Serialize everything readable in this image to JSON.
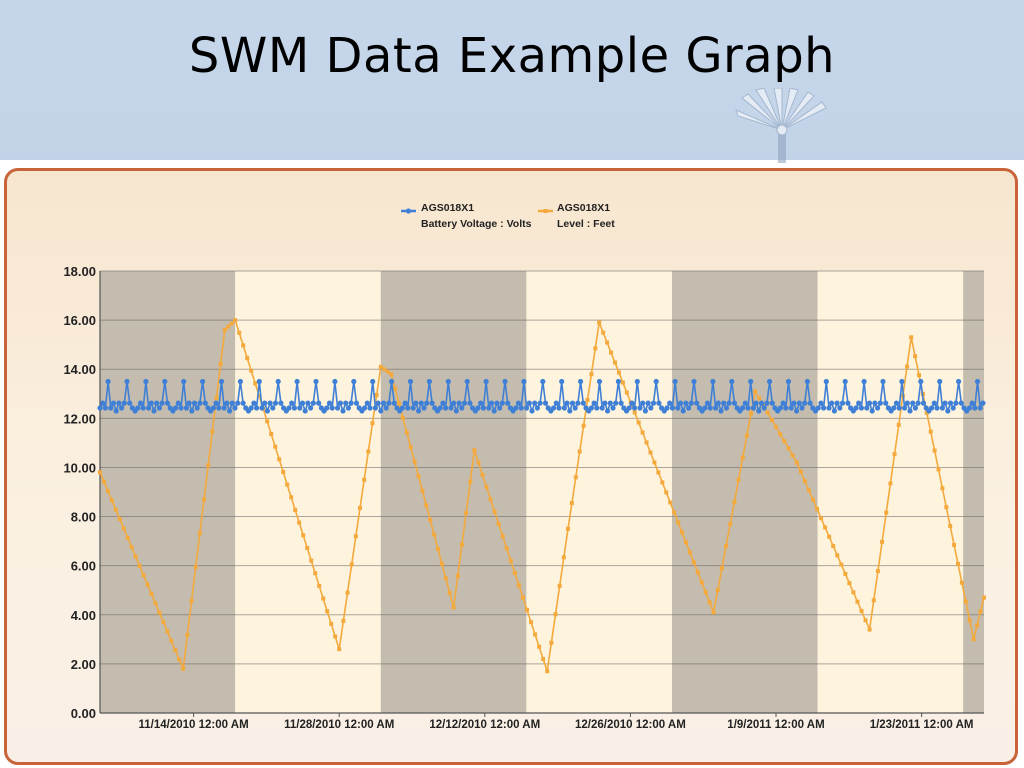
{
  "slide": {
    "title": "SWM Data Example Graph"
  },
  "colors": {
    "voltage": "#3f80d6",
    "level": "#f4a93c",
    "band_dark": "#c4bcae",
    "band_light": "#fef3dc",
    "grid": "#666666",
    "panel_border": "#c8633a"
  },
  "chart_data": {
    "type": "line",
    "y_range": [
      0,
      18
    ],
    "y_ticks": [
      0,
      2,
      4,
      6,
      8,
      10,
      12,
      14,
      16,
      18
    ],
    "y_tick_labels": [
      "0.00",
      "2.00",
      "4.00",
      "6.00",
      "8.00",
      "10.00",
      "12.00",
      "14.00",
      "16.00",
      "18.00"
    ],
    "x_range": [
      "2010-11-05",
      "2011-01-29"
    ],
    "x_ticks": [
      "2010-11-14",
      "2010-11-28",
      "2010-12-12",
      "2010-12-26",
      "2011-01-09",
      "2011-01-23"
    ],
    "x_tick_labels": [
      "11/14/2010  12:00 AM",
      "11/28/2010  12:00 AM",
      "12/12/2010  12:00 AM",
      "12/26/2010  12:00 AM",
      "1/9/2011  12:00 AM",
      "1/23/2011  12:00 AM"
    ],
    "shaded_bands": [
      {
        "start": "2010-11-05",
        "end": "2010-11-18",
        "shade": "dark"
      },
      {
        "start": "2010-11-18",
        "end": "2010-12-02",
        "shade": "light"
      },
      {
        "start": "2010-12-02",
        "end": "2010-12-16",
        "shade": "dark"
      },
      {
        "start": "2010-12-16",
        "end": "2010-12-30",
        "shade": "light"
      },
      {
        "start": "2010-12-30",
        "end": "2011-01-13",
        "shade": "dark"
      },
      {
        "start": "2011-01-13",
        "end": "2011-01-27",
        "shade": "light"
      },
      {
        "start": "2011-01-27",
        "end": "2011-01-29",
        "shade": "dark"
      }
    ],
    "legend_position": "top-center",
    "series": [
      {
        "name": "AGS018X1",
        "name_line2": "Battery Voltage : Volts",
        "color": "#3f80d6",
        "style": "zigzag",
        "baseline": 12.5,
        "peak": 13.5,
        "low": 12.3,
        "x_start": "2010-11-05",
        "x_end": "2011-01-29"
      },
      {
        "name": "AGS018X1",
        "name_line2": "Level : Feet",
        "color": "#f4a93c",
        "style": "sawtooth",
        "x": [
          "2010-11-05",
          "2010-11-13",
          "2010-11-17",
          "2010-11-18",
          "2010-11-28",
          "2010-12-02",
          "2010-12-03",
          "2010-12-09",
          "2010-12-11",
          "2010-12-18",
          "2010-12-20",
          "2010-12-23",
          "2011-01-03",
          "2011-01-07",
          "2011-01-11",
          "2011-01-18",
          "2011-01-22",
          "2011-01-28",
          "2011-01-29"
        ],
        "y": [
          9.8,
          1.8,
          15.6,
          16.0,
          2.6,
          14.1,
          13.8,
          4.3,
          10.7,
          1.7,
          7.5,
          15.9,
          4.1,
          13.1,
          10.2,
          3.4,
          15.3,
          3.0,
          4.7
        ]
      }
    ]
  }
}
